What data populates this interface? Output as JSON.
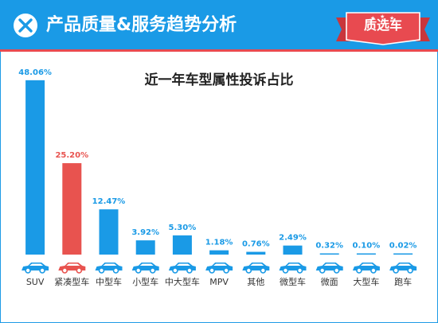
{
  "header": {
    "title": "产品质量&服务趋势分析",
    "badge": "质选车"
  },
  "colors": {
    "primary": "#1a9ae6",
    "highlight": "#e8534f",
    "accent_red": "#e84a50"
  },
  "icons": [
    "brand-logo-icon",
    "car-icon"
  ],
  "chart_data": {
    "type": "bar",
    "title": "近一年车型属性投诉占比",
    "xlabel": "",
    "ylabel": "",
    "ylim": [
      0,
      50
    ],
    "grid": false,
    "legend": "none",
    "categories": [
      "SUV",
      "紧凑型车",
      "中型车",
      "小型车",
      "中大型车",
      "MPV",
      "其他",
      "微型车",
      "微面",
      "大型车",
      "跑车"
    ],
    "values": [
      48.06,
      25.2,
      12.47,
      3.92,
      5.3,
      1.18,
      0.76,
      2.49,
      0.32,
      0.1,
      0.02
    ],
    "labels": [
      "48.06%",
      "25.20%",
      "12.47%",
      "3.92%",
      "5.30%",
      "1.18%",
      "0.76%",
      "2.49%",
      "0.32%",
      "0.10%",
      "0.02%"
    ],
    "highlight_index": 1
  }
}
